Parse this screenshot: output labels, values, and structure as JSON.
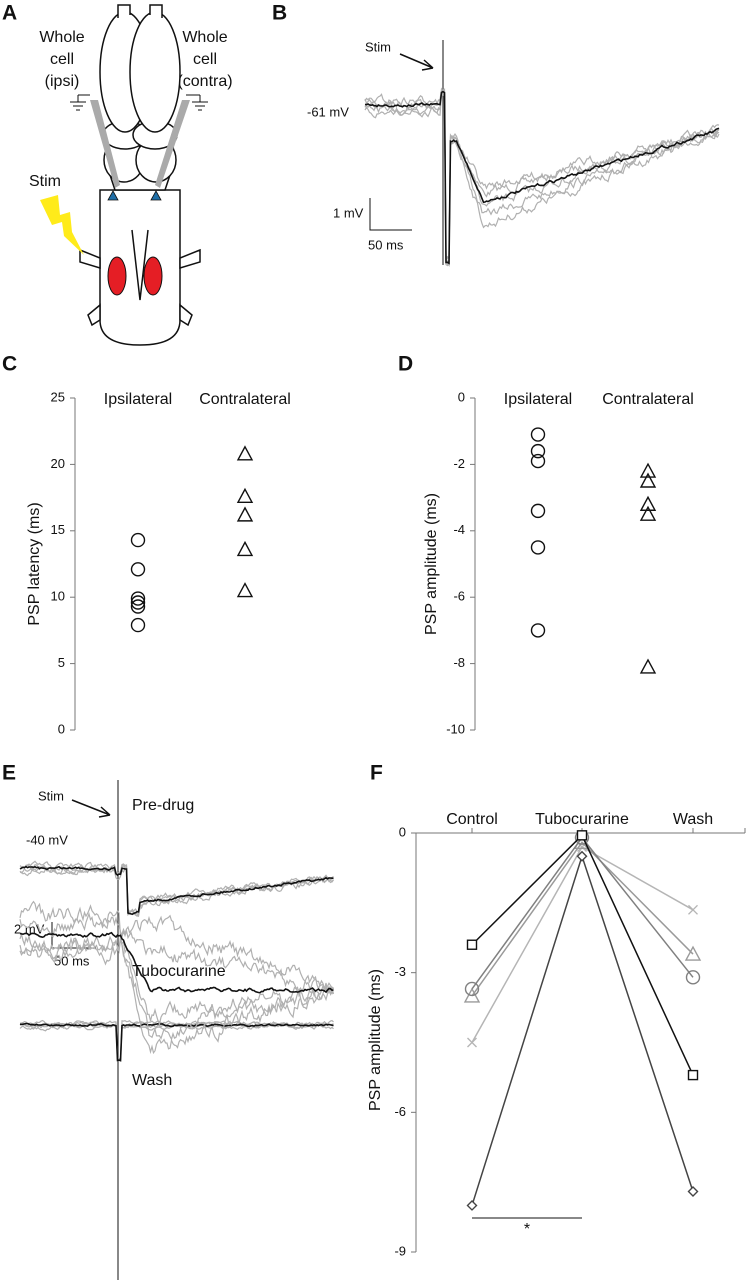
{
  "panels": {
    "A": {
      "label": "A",
      "left_electrode": [
        "Whole",
        "cell",
        "(ipsi)"
      ],
      "right_electrode": [
        "Whole",
        "cell",
        "(contra)"
      ],
      "stim": "Stim"
    },
    "B": {
      "label": "B",
      "stim": "Stim",
      "holding": "-61 mV",
      "scale_y": "1 mV",
      "scale_x": "50 ms"
    },
    "E": {
      "label": "E",
      "stim": "Stim",
      "holding": "-40 mV",
      "scale_y": "2 mV",
      "scale_x": "50 ms",
      "conditions": [
        "Pre-drug",
        "Tubocurarine",
        "Wash"
      ]
    }
  },
  "chart_data": [
    {
      "type": "strip",
      "label": "C",
      "y_label": "PSP latency (ms)",
      "ylim": [
        0,
        25
      ],
      "yticks": [
        0,
        5,
        10,
        15,
        20,
        25
      ],
      "groups": [
        {
          "name": "Ipsilateral",
          "marker": "circle",
          "color": "#111111",
          "values": [
            14.3,
            12.1,
            9.9,
            9.6,
            9.3,
            7.9
          ]
        },
        {
          "name": "Contralateral",
          "marker": "triangle",
          "color": "#111111",
          "values": [
            20.8,
            17.6,
            16.2,
            13.6,
            10.5
          ]
        }
      ]
    },
    {
      "type": "strip",
      "label": "D",
      "y_label": "PSP amplitude (ms)",
      "ylim": [
        -10,
        0
      ],
      "yticks": [
        0,
        -2,
        -4,
        -6,
        -8,
        -10
      ],
      "groups": [
        {
          "name": "Ipsilateral",
          "marker": "circle",
          "color": "#111111",
          "values": [
            -1.1,
            -1.6,
            -1.9,
            -3.4,
            -4.5,
            -7.0
          ]
        },
        {
          "name": "Contralateral",
          "marker": "triangle",
          "color": "#111111",
          "values": [
            -2.2,
            -2.5,
            -3.2,
            -3.5,
            -8.1
          ]
        }
      ]
    },
    {
      "type": "line",
      "label": "F",
      "y_label": "PSP amplitude (ms)",
      "ylim": [
        -9,
        0
      ],
      "yticks": [
        0,
        -3,
        -6,
        -9
      ],
      "categories": [
        "Control",
        "Tubocurarine",
        "Wash"
      ],
      "series": [
        {
          "marker": "x",
          "color": "#b5b5b5",
          "values": [
            -4.5,
            -0.3,
            -1.65
          ]
        },
        {
          "marker": "triangle",
          "color": "#9a9a9a",
          "values": [
            -3.5,
            -0.2,
            -2.6
          ]
        },
        {
          "marker": "circle",
          "color": "#808080",
          "values": [
            -3.35,
            -0.1,
            -3.1
          ]
        },
        {
          "marker": "diamond",
          "color": "#444444",
          "values": [
            -8.0,
            -0.5,
            -7.7
          ]
        },
        {
          "marker": "square",
          "color": "#111111",
          "values": [
            -2.4,
            -0.05,
            -5.2
          ]
        }
      ],
      "significance": {
        "between": [
          "Control",
          "Tubocurarine"
        ],
        "label": "*"
      }
    }
  ]
}
